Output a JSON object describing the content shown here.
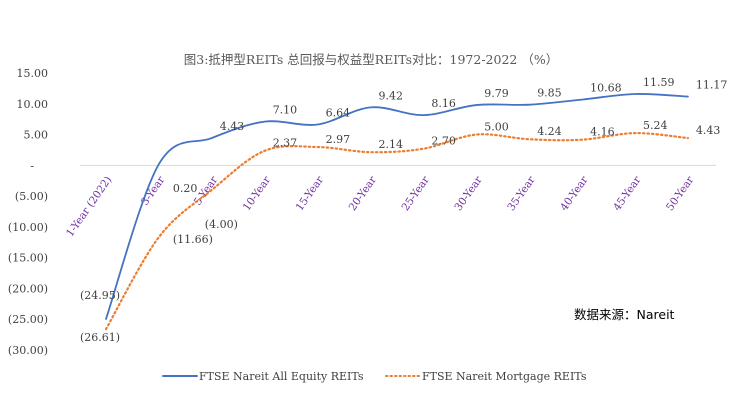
{
  "chart_data": {
    "type": "line",
    "title": "图3:抵押型REITs 总回报与权益型REITs对比：1972-2022 （%）",
    "categories": [
      "1-Year (2022)",
      "3-Year",
      "5-Year",
      "10-Year",
      "15-Year",
      "20-Year",
      "25-Year",
      "30-Year",
      "35-Year",
      "40-Year",
      "45-Year",
      "50-Year"
    ],
    "series": [
      {
        "name": "FTSE Nareit All Equity REITs",
        "color": "#4472c4",
        "style": "solid",
        "values": [
          -24.95,
          0.2,
          4.43,
          7.1,
          6.64,
          9.42,
          8.16,
          9.79,
          9.85,
          10.68,
          11.59,
          11.17
        ],
        "labels": [
          "(24.95)",
          "0.20",
          "4.43",
          "7.10",
          "6.64",
          "9.42",
          "8.16",
          "9.79",
          "9.85",
          "10.68",
          "11.59",
          "11.17"
        ]
      },
      {
        "name": "FTSE Nareit Mortgage REITs",
        "color": "#ed7d31",
        "style": "dotted",
        "values": [
          -26.61,
          -11.66,
          -4.0,
          2.37,
          2.97,
          2.14,
          2.7,
          5.0,
          4.24,
          4.16,
          5.24,
          4.43
        ],
        "labels": [
          "(26.61)",
          "(11.66)",
          "(4.00)",
          "2.37",
          "2.97",
          "2.14",
          "2.70",
          "5.00",
          "4.24",
          "4.16",
          "5.24",
          "4.43"
        ]
      }
    ],
    "ylim": [
      -30,
      15
    ],
    "yticks": [
      15,
      10,
      5,
      0,
      -5,
      -10,
      -15,
      -20,
      -25,
      -30
    ],
    "ytick_labels": [
      "15.00",
      "10.00",
      "5.00",
      "-",
      "(5.00)",
      "(10.00)",
      "(15.00)",
      "(20.00)",
      "(25.00)",
      "(30.00)"
    ],
    "legend": "bottom",
    "grid": false
  },
  "source": "数据来源：Nareit"
}
